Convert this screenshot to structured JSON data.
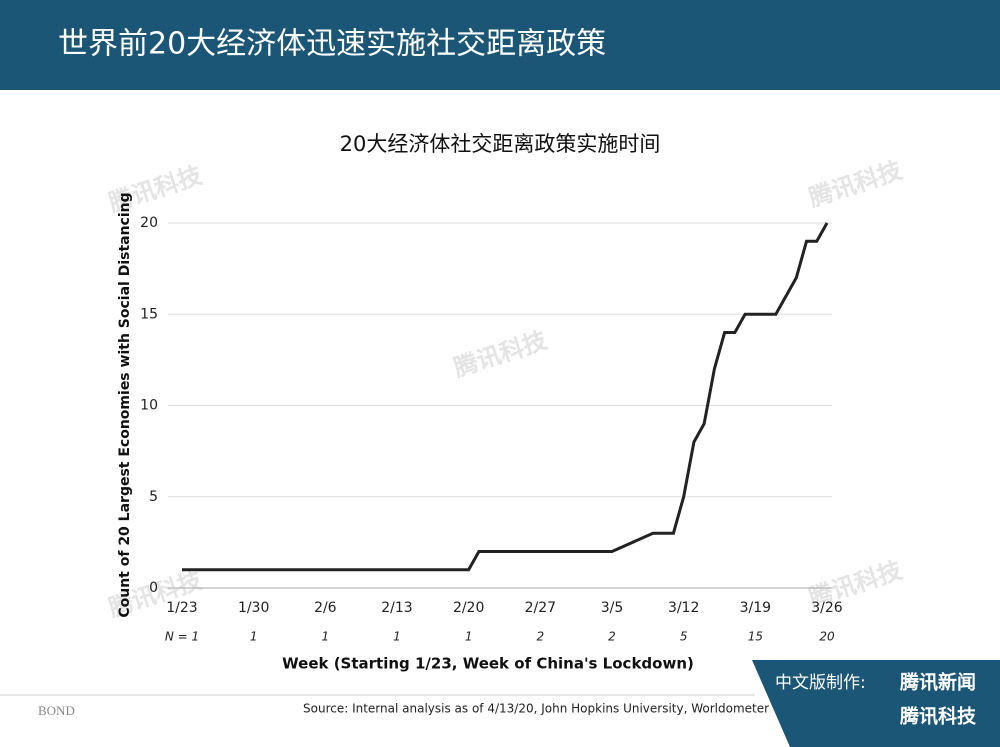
{
  "header": {
    "title": "世界前20大经济体迅速实施社交距离政策"
  },
  "chart_data": {
    "type": "line",
    "title": "20大经济体社交距离政策实施时间",
    "x": [
      "1/23",
      "2/20",
      "2/21",
      "3/5",
      "3/9",
      "3/11",
      "3/12",
      "3/13",
      "3/14",
      "3/15",
      "3/16",
      "3/17",
      "3/18",
      "3/21",
      "3/23",
      "3/24",
      "3/25",
      "3/26"
    ],
    "series": [
      {
        "name": "Count",
        "color": "#222222",
        "values": [
          1,
          1,
          2,
          2,
          3,
          3,
          5,
          8,
          9,
          12,
          14,
          14,
          15,
          15,
          17,
          19,
          19,
          20
        ]
      }
    ],
    "xlim": [
      "1/23",
      "3/26"
    ],
    "xticks": [
      "1/23",
      "1/30",
      "2/6",
      "2/13",
      "2/20",
      "2/27",
      "3/5",
      "3/12",
      "3/19",
      "3/26"
    ],
    "n_labels": [
      "N = 1",
      "1",
      "1",
      "1",
      "1",
      "2",
      "2",
      "5",
      "15",
      "20"
    ],
    "ylim": [
      0,
      20
    ],
    "yticks": [
      0,
      5,
      10,
      15,
      20
    ],
    "grid": true,
    "ylabel": "Count of 20 Largest Economies with Social Distancing",
    "xlabel": "Week (Starting 1/23, Week of China's Lockdown)"
  },
  "source": "Source: Internal analysis as of 4/13/20, John Hopkins University, Worldometer",
  "logo": "BOND",
  "footer": {
    "made_by": "中文版制作:",
    "brand1": "腾讯新闻",
    "brand2": "腾讯科技"
  },
  "watermark": "腾讯科技"
}
